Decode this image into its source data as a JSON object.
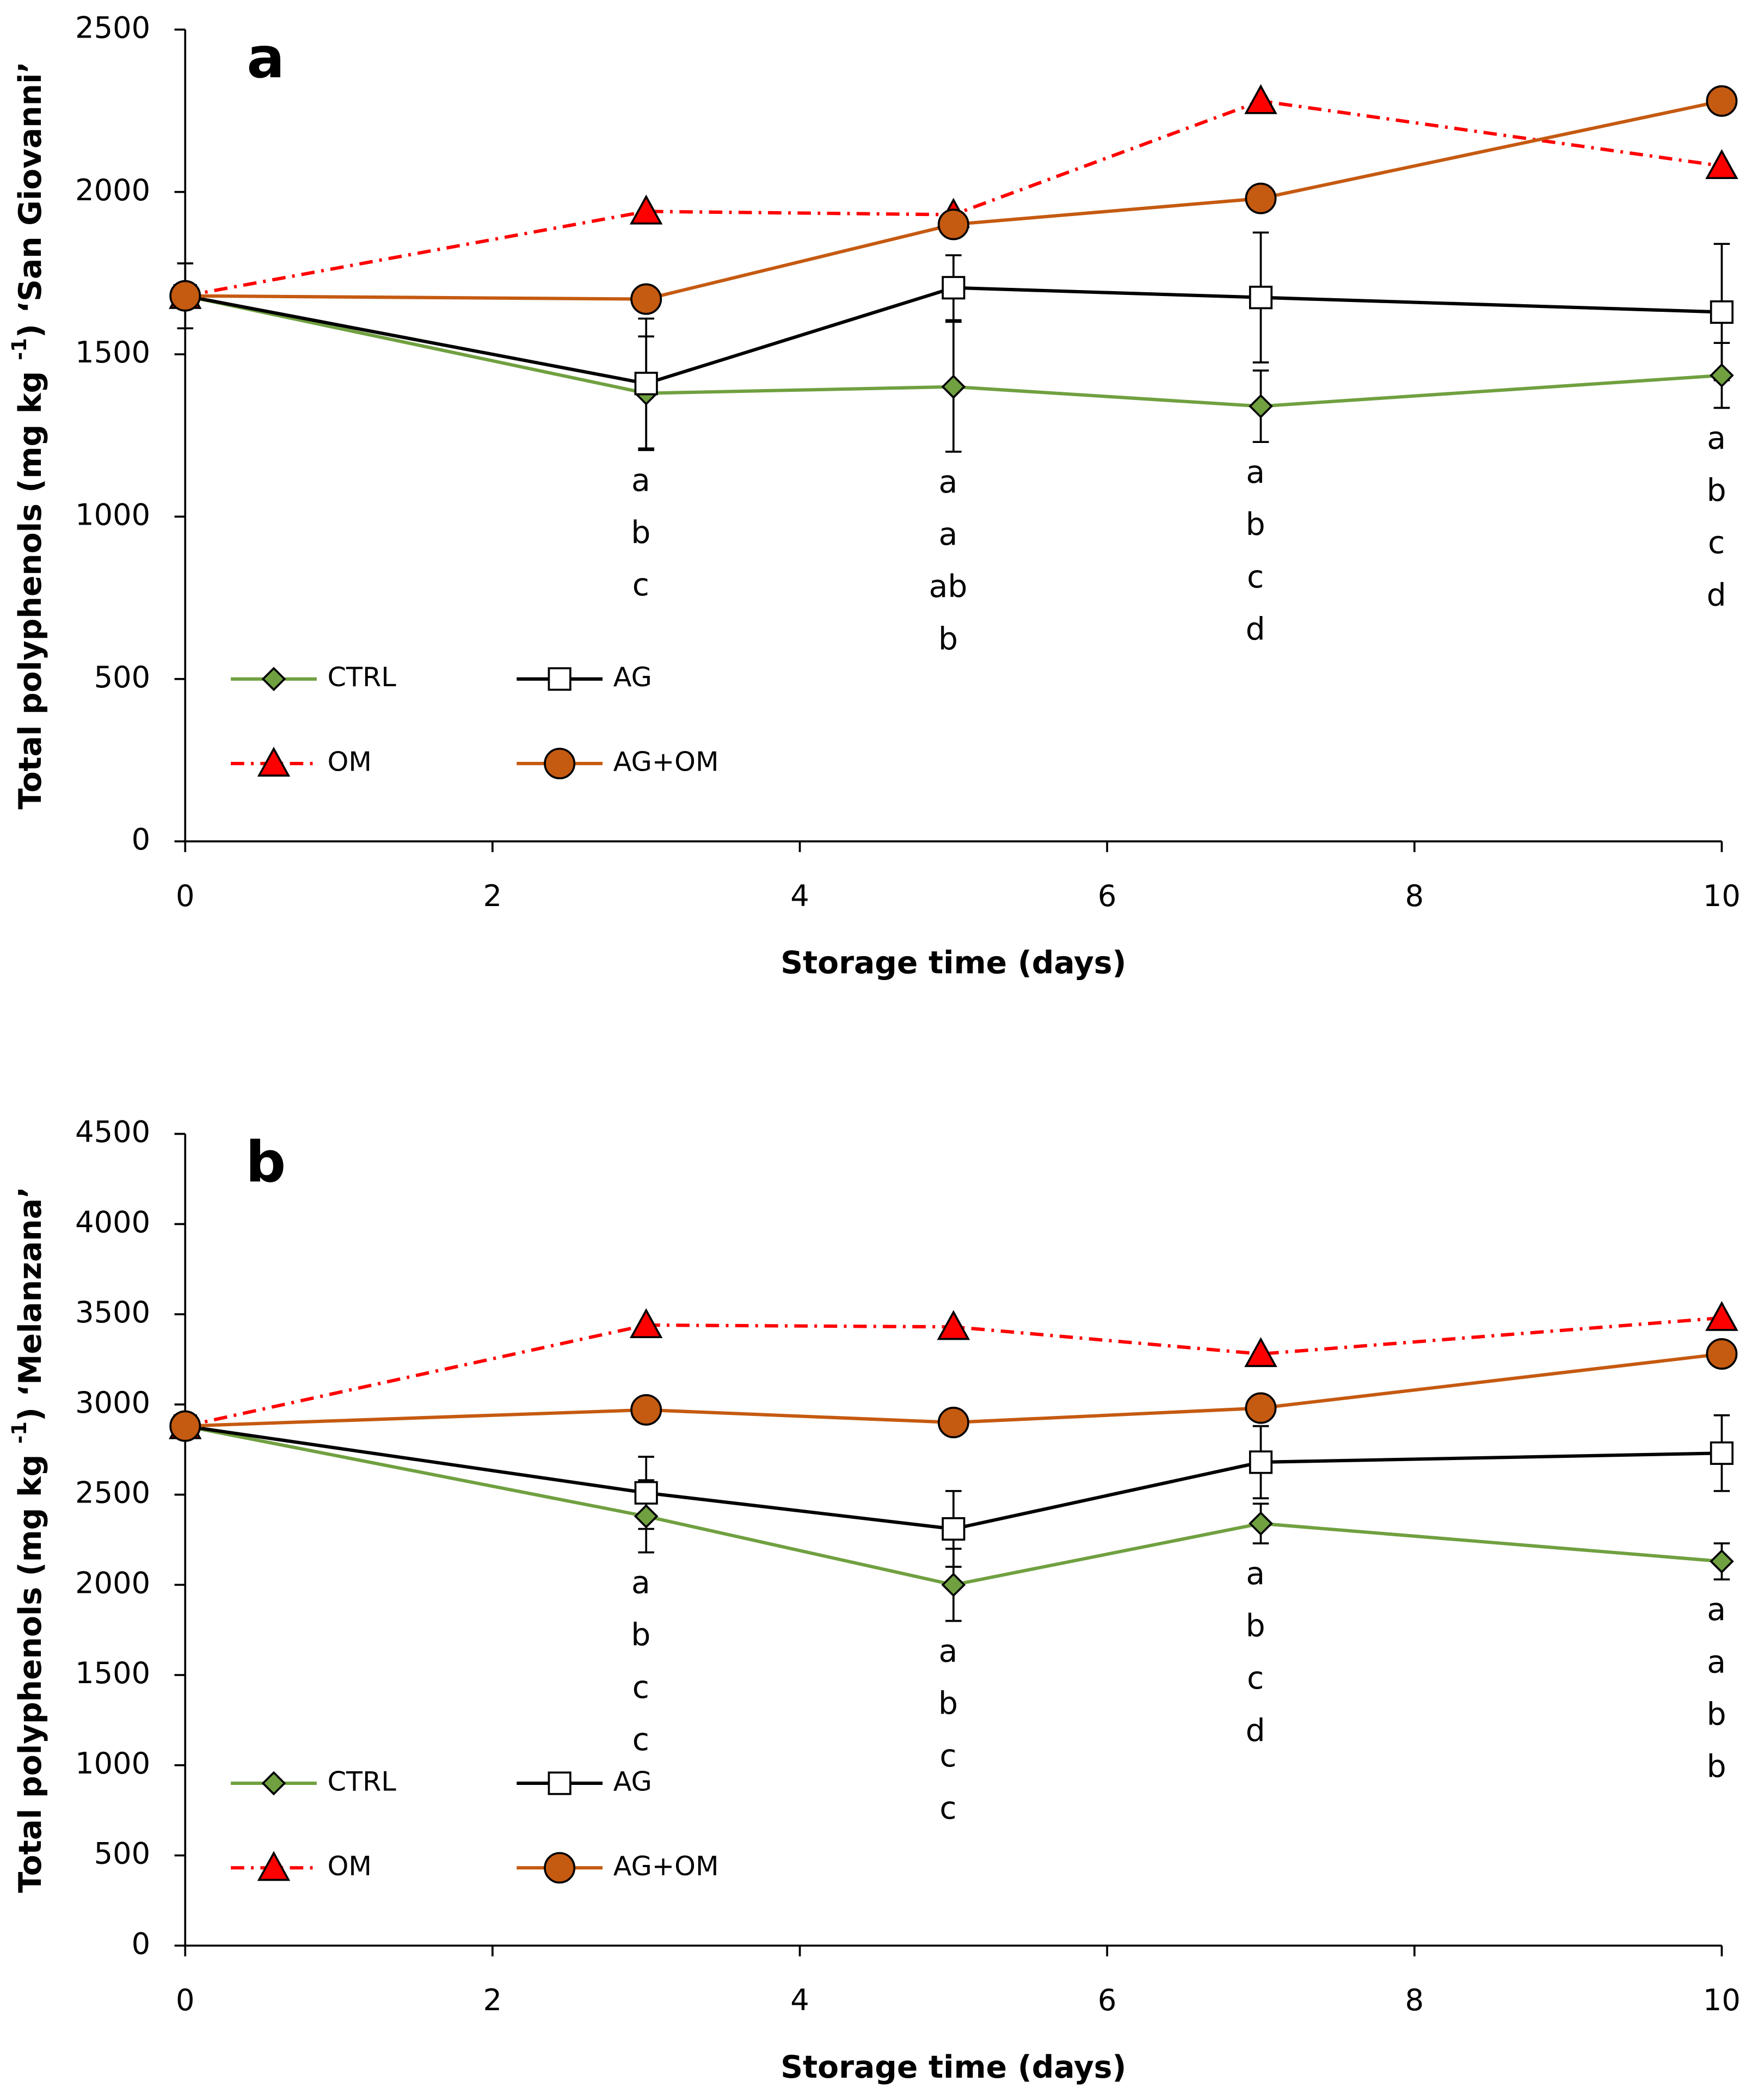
{
  "chart_data": [
    {
      "type": "line",
      "panel_label": "a",
      "x_label": "Storage time (days)",
      "y_label": "Total polyphenols (mg kg ",
      "y_label_sup": "-1",
      "y_label_end": ") ‘San Giovanni’",
      "x": [
        0,
        3,
        5,
        7,
        10
      ],
      "xlim": [
        0,
        10
      ],
      "xticks": [
        0,
        2,
        4,
        6,
        8,
        10
      ],
      "ylim": [
        0,
        2500
      ],
      "yticks": [
        0,
        500,
        1000,
        1500,
        2000,
        2500
      ],
      "series": [
        {
          "name": "CTRL",
          "color": "#70a040",
          "marker": "diamond",
          "dashed": false,
          "values": [
            1680,
            1380,
            1400,
            1340,
            1435
          ],
          "errors": [
            100,
            175,
            200,
            110,
            100
          ]
        },
        {
          "name": "AG",
          "color": "#000000",
          "marker": "square",
          "dashed": false,
          "values": [
            1680,
            1410,
            1705,
            1675,
            1630
          ],
          "errors": [
            0,
            200,
            100,
            200,
            210
          ]
        },
        {
          "name": "OM",
          "color": "#ff0000",
          "marker": "triangle",
          "dashed": true,
          "values": [
            1680,
            1940,
            1930,
            2280,
            2080
          ]
        },
        {
          "name": "AG+OM",
          "color": "#c55a11",
          "marker": "circle",
          "dashed": false,
          "values": [
            1680,
            1670,
            1900,
            1980,
            2280
          ]
        }
      ],
      "annotations": [
        {
          "x": 3,
          "labels": [
            "a",
            "b",
            "c"
          ]
        },
        {
          "x": 5,
          "labels": [
            "a",
            "a",
            "ab",
            "b"
          ]
        },
        {
          "x": 7,
          "labels": [
            "a",
            "b",
            "c",
            "d"
          ]
        },
        {
          "x": 10,
          "labels": [
            "a",
            "b",
            "c",
            "d"
          ]
        }
      ]
    },
    {
      "type": "line",
      "panel_label": "b",
      "x_label": "Storage time (days)",
      "y_label": "Total polyphenols (mg kg ",
      "y_label_sup": "-1",
      "y_label_end": ") ‘Melanzana’",
      "x": [
        0,
        3,
        5,
        7,
        10
      ],
      "xlim": [
        0,
        10
      ],
      "xticks": [
        0,
        2,
        4,
        6,
        8,
        10
      ],
      "ylim": [
        0,
        4500
      ],
      "yticks": [
        0,
        500,
        1000,
        1500,
        2000,
        2500,
        3000,
        3500,
        4000,
        4500
      ],
      "series": [
        {
          "name": "CTRL",
          "color": "#70a040",
          "marker": "diamond",
          "dashed": false,
          "values": [
            2880,
            2380,
            2000,
            2340,
            2130
          ],
          "errors": [
            0,
            200,
            200,
            110,
            100
          ]
        },
        {
          "name": "AG",
          "color": "#000000",
          "marker": "square",
          "dashed": false,
          "values": [
            2880,
            2510,
            2310,
            2680,
            2730
          ],
          "errors": [
            0,
            200,
            210,
            200,
            210
          ]
        },
        {
          "name": "OM",
          "color": "#ff0000",
          "marker": "triangle",
          "dashed": true,
          "values": [
            2880,
            3440,
            3430,
            3280,
            3480
          ]
        },
        {
          "name": "AG+OM",
          "color": "#c55a11",
          "marker": "circle",
          "dashed": false,
          "values": [
            2880,
            2970,
            2900,
            2980,
            3280
          ]
        }
      ],
      "annotations": [
        {
          "x": 3,
          "labels": [
            "a",
            "b",
            "c",
            "c"
          ]
        },
        {
          "x": 5,
          "labels": [
            "a",
            "b",
            "c",
            "c"
          ]
        },
        {
          "x": 7,
          "labels": [
            "a",
            "b",
            "c",
            "d"
          ]
        },
        {
          "x": 10,
          "labels": [
            "a",
            "a",
            "b",
            "b"
          ]
        }
      ]
    }
  ]
}
